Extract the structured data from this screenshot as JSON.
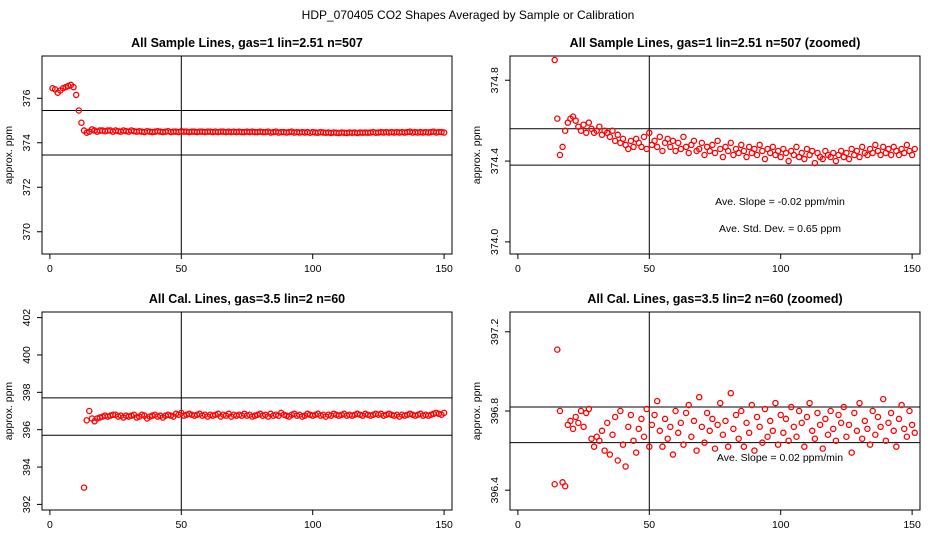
{
  "figure_title": "HDP_070405  CO2 Shapes Averaged by Sample or Calibration",
  "chart_data": [
    {
      "type": "scatter",
      "title": "All Sample Lines, gas=1 lin=2.51 n=507",
      "xlabel": "",
      "ylabel": "approx. ppm",
      "xlim": [
        -3,
        153
      ],
      "ylim": [
        369,
        377.9
      ],
      "xticks": [
        0,
        50,
        100,
        150
      ],
      "yticks": [
        370,
        372,
        374,
        376
      ],
      "vline": 50,
      "hlines": [
        375.45,
        373.45
      ],
      "marker_color": "#ff0000",
      "series": [
        {
          "x_start": 1,
          "values": [
            376.45,
            376.4,
            376.25,
            376.35,
            376.45,
            376.5,
            376.55,
            376.6,
            376.5,
            376.15,
            375.45,
            374.9,
            374.55,
            374.45,
            374.5,
            374.6,
            374.55,
            374.5,
            374.55,
            374.55,
            374.52,
            374.55,
            374.55,
            374.5,
            374.55,
            374.52,
            374.5,
            374.55,
            374.52,
            374.5,
            374.55,
            374.52,
            374.5,
            374.52,
            374.5,
            374.48,
            374.52,
            374.5,
            374.48,
            374.5,
            374.52,
            374.5,
            374.48,
            374.5,
            374.52,
            374.48,
            374.5,
            374.5,
            374.48,
            374.52,
            374.5,
            374.5,
            374.48,
            374.5,
            374.5,
            374.48,
            374.5,
            374.5,
            374.48,
            374.5,
            374.5,
            374.48,
            374.5,
            374.48,
            374.5,
            374.5,
            374.48,
            374.5,
            374.48,
            374.5,
            374.48,
            374.5,
            374.48,
            374.48,
            374.5,
            374.48,
            374.5,
            374.48,
            374.48,
            374.5,
            374.48,
            374.48,
            374.5,
            374.46,
            374.48,
            374.5,
            374.46,
            374.48,
            374.48,
            374.46,
            374.48,
            374.5,
            374.46,
            374.48,
            374.46,
            374.48,
            374.46,
            374.48,
            374.45,
            374.48,
            374.46,
            374.45,
            374.48,
            374.46,
            374.45,
            374.46,
            374.44,
            374.46,
            374.45,
            374.44,
            374.46,
            374.45,
            374.44,
            374.46,
            374.45,
            374.46,
            374.44,
            374.46,
            374.45,
            374.46,
            374.45,
            374.46,
            374.48,
            374.45,
            374.46,
            374.48,
            374.46,
            374.48,
            374.46,
            374.48,
            374.46,
            374.48,
            374.46,
            374.48,
            374.46,
            374.48,
            374.5,
            374.46,
            374.48,
            374.46,
            374.48,
            374.46,
            374.48,
            374.46,
            374.48,
            374.5,
            374.46,
            374.48,
            374.48,
            374.46
          ]
        }
      ]
    },
    {
      "type": "scatter",
      "title": "All Sample Lines, gas=1 lin=2.51 n=507 (zoomed)",
      "xlabel": "",
      "ylabel": "approx. ppm",
      "xlim": [
        -3,
        153
      ],
      "ylim": [
        373.94,
        374.92
      ],
      "xticks": [
        0,
        50,
        100,
        150
      ],
      "yticks": [
        374.0,
        374.4,
        374.8
      ],
      "ytick_labels": [
        "374.0",
        "374.4",
        "374.8"
      ],
      "vline": 50,
      "hlines": [
        374.56,
        374.38
      ],
      "marker_color": "#ff0000",
      "annotations": [
        "Ave. Slope =  -0.02  ppm/min",
        "Ave. Std. Dev. =  0.65  ppm"
      ],
      "series": [
        {
          "x_start": 14,
          "values": [
            374.9,
            374.61,
            374.43,
            374.47,
            374.55,
            374.59,
            374.61,
            374.62,
            374.6,
            374.57,
            374.55,
            374.58,
            374.54,
            374.59,
            374.56,
            374.54,
            374.55,
            374.57,
            374.53,
            374.55,
            374.54,
            374.52,
            374.55,
            374.5,
            374.53,
            374.49,
            374.51,
            374.48,
            374.46,
            374.5,
            374.47,
            374.51,
            374.49,
            374.47,
            374.52,
            374.46,
            374.54,
            374.48,
            374.5,
            374.47,
            374.52,
            374.45,
            374.49,
            374.51,
            374.47,
            374.5,
            374.45,
            374.49,
            374.46,
            374.52,
            374.47,
            374.44,
            374.48,
            374.5,
            374.45,
            374.46,
            374.49,
            374.43,
            374.47,
            374.45,
            374.48,
            374.44,
            374.5,
            374.46,
            374.42,
            374.47,
            374.45,
            374.49,
            374.43,
            374.46,
            374.44,
            374.48,
            374.45,
            374.42,
            374.47,
            374.44,
            374.46,
            374.43,
            374.48,
            374.45,
            374.41,
            374.46,
            374.44,
            374.47,
            374.43,
            374.45,
            374.42,
            374.46,
            374.44,
            374.4,
            374.45,
            374.43,
            374.47,
            374.42,
            374.44,
            374.41,
            374.46,
            374.43,
            374.45,
            374.39,
            374.44,
            374.42,
            374.41,
            374.45,
            374.43,
            374.42,
            374.44,
            374.4,
            374.43,
            374.45,
            374.42,
            374.44,
            374.41,
            374.46,
            374.43,
            374.45,
            374.42,
            374.47,
            374.44,
            374.43,
            374.46,
            374.44,
            374.48,
            374.45,
            374.43,
            374.47,
            374.44,
            374.46,
            374.43,
            374.47,
            374.45,
            374.43,
            374.46,
            374.44,
            374.48,
            374.45,
            374.43,
            374.46
          ]
        }
      ]
    },
    {
      "type": "scatter",
      "title": "All Cal. Lines, gas=3.5 lin=2 n=60",
      "xlabel": "",
      "ylabel": "approx. ppm",
      "xlim": [
        -3,
        153
      ],
      "ylim": [
        391.7,
        402.3
      ],
      "xticks": [
        0,
        50,
        100,
        150
      ],
      "yticks": [
        392,
        394,
        396,
        398,
        400,
        402
      ],
      "vline": 50,
      "hlines": [
        397.7,
        395.7
      ],
      "marker_color": "#ff0000",
      "series": [
        {
          "x_start": 13,
          "values": [
            392.9,
            396.5,
            397.0,
            396.6,
            396.45,
            396.6,
            396.65,
            396.7,
            396.75,
            396.7,
            396.75,
            396.8,
            396.8,
            396.7,
            396.75,
            396.65,
            396.75,
            396.7,
            396.75,
            396.8,
            396.65,
            396.7,
            396.8,
            396.75,
            396.6,
            396.7,
            396.75,
            396.8,
            396.7,
            396.75,
            396.65,
            396.75,
            396.8,
            396.75,
            396.7,
            396.85,
            396.8,
            396.9,
            396.75,
            396.8,
            396.85,
            396.8,
            396.75,
            396.8,
            396.85,
            396.75,
            396.8,
            396.7,
            396.8,
            396.75,
            396.8,
            396.85,
            396.7,
            396.8,
            396.75,
            396.85,
            396.7,
            396.8,
            396.75,
            396.8,
            396.75,
            396.85,
            396.75,
            396.8,
            396.7,
            396.75,
            396.8,
            396.85,
            396.75,
            396.8,
            396.7,
            396.85,
            396.75,
            396.8,
            396.75,
            396.9,
            396.8,
            396.75,
            396.7,
            396.8,
            396.85,
            396.75,
            396.8,
            396.7,
            396.75,
            396.85,
            396.8,
            396.75,
            396.8,
            396.85,
            396.75,
            396.8,
            396.7,
            396.8,
            396.75,
            396.85,
            396.8,
            396.75,
            396.8,
            396.85,
            396.75,
            396.8,
            396.75,
            396.8,
            396.85,
            396.8,
            396.75,
            396.85,
            396.8,
            396.75,
            396.8,
            396.85,
            396.8,
            396.85,
            396.75,
            396.8,
            396.85,
            396.8,
            396.75,
            396.8,
            396.7,
            396.8,
            396.75,
            396.8,
            396.85,
            396.8,
            396.75,
            396.8,
            396.85,
            396.75,
            396.8,
            396.75,
            396.8,
            396.85,
            396.9,
            396.85,
            396.8,
            396.9
          ]
        }
      ]
    },
    {
      "type": "scatter",
      "title": "All Cal. Lines, gas=3.5 lin=2 n=60 (zoomed)",
      "xlabel": "",
      "ylabel": "approx. ppm",
      "xlim": [
        -3,
        153
      ],
      "ylim": [
        396.3,
        397.3
      ],
      "xticks": [
        0,
        50,
        100,
        150
      ],
      "yticks": [
        396.4,
        396.8,
        397.2
      ],
      "ytick_labels": [
        "396.4",
        "396.8",
        "397.2"
      ],
      "vline": 50,
      "hlines": [
        396.82,
        396.64
      ],
      "marker_color": "#ff0000",
      "annotations": [
        "Ave. Slope =  0.02  ppm/min"
      ],
      "series": [
        {
          "x_start": 14,
          "values": [
            396.43,
            397.11,
            396.8,
            396.44,
            396.42,
            396.73,
            396.75,
            396.71,
            396.77,
            396.74,
            396.8,
            396.72,
            396.79,
            396.81,
            396.66,
            396.62,
            396.67,
            396.65,
            396.7,
            396.6,
            396.74,
            396.58,
            396.68,
            396.77,
            396.55,
            396.8,
            396.63,
            396.52,
            396.72,
            396.78,
            396.65,
            396.59,
            396.71,
            396.76,
            396.67,
            396.81,
            396.62,
            396.73,
            396.78,
            396.85,
            396.7,
            396.62,
            396.76,
            396.66,
            396.72,
            396.58,
            396.8,
            396.69,
            396.74,
            396.63,
            396.79,
            396.83,
            396.67,
            396.75,
            396.6,
            396.87,
            396.72,
            396.64,
            396.79,
            396.7,
            396.76,
            396.61,
            396.73,
            396.84,
            396.68,
            396.75,
            396.62,
            396.89,
            396.71,
            396.78,
            396.66,
            396.8,
            396.62,
            396.74,
            396.69,
            396.83,
            396.6,
            396.77,
            396.72,
            396.64,
            396.81,
            396.67,
            396.75,
            396.7,
            396.84,
            396.63,
            396.78,
            396.69,
            396.76,
            396.65,
            396.82,
            396.72,
            396.67,
            396.8,
            396.74,
            396.62,
            396.77,
            396.84,
            396.7,
            396.66,
            396.79,
            396.73,
            396.61,
            396.76,
            396.68,
            396.8,
            396.71,
            396.65,
            396.78,
            396.74,
            396.82,
            396.67,
            396.73,
            396.59,
            396.79,
            396.7,
            396.84,
            396.66,
            396.75,
            396.71,
            396.63,
            396.8,
            396.68,
            396.77,
            396.72,
            396.86,
            396.65,
            396.74,
            396.79,
            396.7,
            396.62,
            396.76,
            396.83,
            396.71,
            396.67,
            396.8,
            396.73,
            396.69
          ]
        }
      ]
    }
  ]
}
